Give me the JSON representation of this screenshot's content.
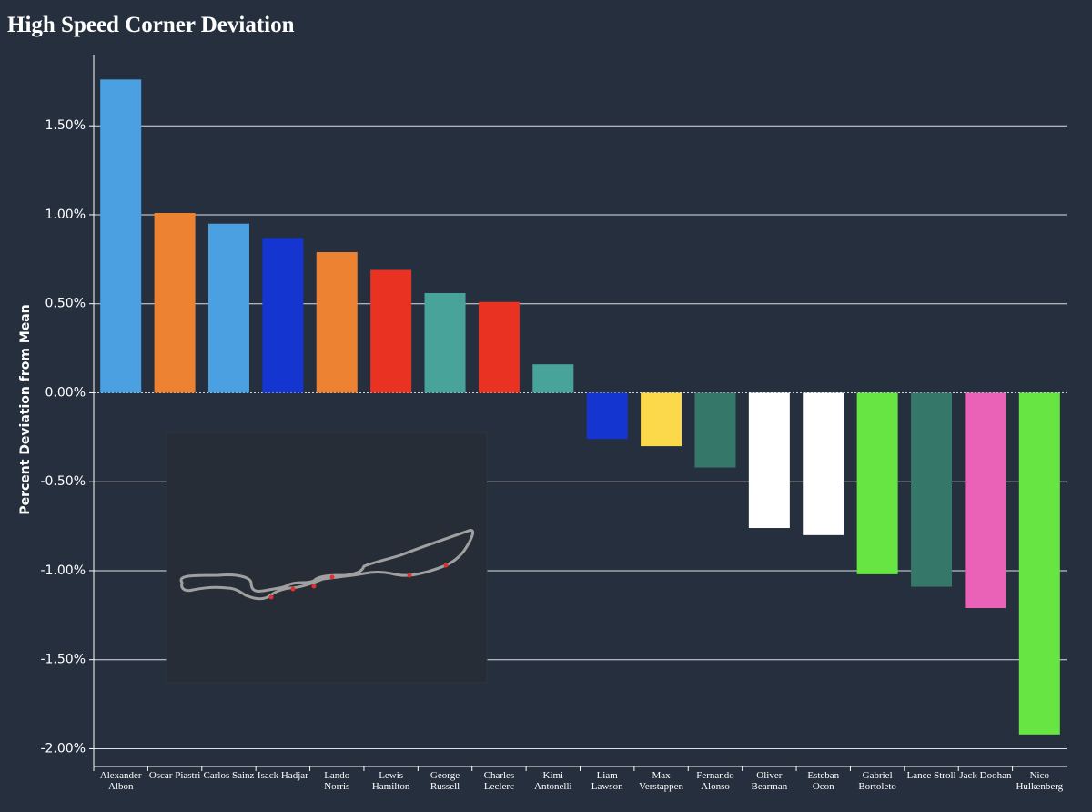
{
  "chart_data": {
    "type": "bar",
    "title": "High Speed Corner Deviation",
    "y_label": "Percent Deviation from Mean",
    "categories": [
      "Alexander\nAlbon",
      "Oscar Piastri",
      "Carlos Sainz",
      "Isack Hadjar",
      "Lando\nNorris",
      "Lewis\nHamilton",
      "George\nRussell",
      "Charles\nLeclerc",
      "Kimi\nAntonelli",
      "Liam\nLawson",
      "Max\nVerstappen",
      "Fernando\nAlonso",
      "Oliver\nBearman",
      "Esteban\nOcon",
      "Gabriel\nBortoleto",
      "Lance Stroll",
      "Jack Doohan",
      "Nico\nHulkenberg"
    ],
    "values": [
      1.76,
      1.01,
      0.95,
      0.87,
      0.79,
      0.69,
      0.56,
      0.51,
      0.16,
      -0.26,
      -0.3,
      -0.42,
      -0.76,
      -0.8,
      -1.02,
      -1.09,
      -1.21,
      -1.92
    ],
    "colors": [
      "#4aa0e0",
      "#ee8233",
      "#4aa0e0",
      "#1535d0",
      "#ee8233",
      "#e93222",
      "#48a39b",
      "#e93222",
      "#48a39b",
      "#1535d0",
      "#fcd94a",
      "#357768",
      "#ffffff",
      "#ffffff",
      "#67e543",
      "#357768",
      "#ea62b8",
      "#67e543"
    ],
    "ylim": [
      -2.1,
      1.9
    ],
    "yticks": [
      {
        "value": -2,
        "label": "-2.00%"
      },
      {
        "value": -1.5,
        "label": "-1.50%"
      },
      {
        "value": -1,
        "label": "-1.00%"
      },
      {
        "value": -0.5,
        "label": "-0.50%"
      },
      {
        "value": 0,
        "label": "0.00%"
      },
      {
        "value": 0.5,
        "label": "0.50%"
      },
      {
        "value": 1,
        "label": "1.00%"
      },
      {
        "value": 1.5,
        "label": "1.50%"
      }
    ],
    "grid": true
  }
}
